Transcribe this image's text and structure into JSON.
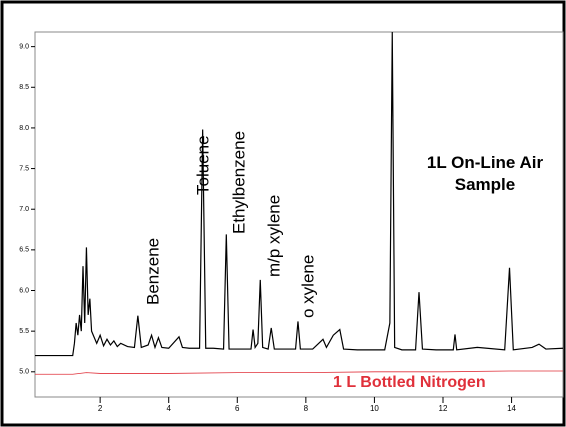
{
  "chart_data": {
    "type": "line",
    "xlim": [
      0.1,
      15.5
    ],
    "ylim": [
      4.69,
      9.18
    ],
    "xticks": [
      2,
      4,
      6,
      8,
      10,
      12,
      14
    ],
    "yticks": [
      {
        "value": 5,
        "label": "5.0"
      },
      5.5,
      {
        "value": 6,
        "label": "6.0"
      },
      6.5,
      {
        "value": 7,
        "label": "7.0"
      },
      7.5,
      {
        "value": 8,
        "label": "8.0"
      },
      8.5,
      {
        "value": 9,
        "label": "9.0"
      }
    ],
    "series": [
      {
        "name": "1L On-Line Air Sample",
        "color": "#000000",
        "x": [
          0.1,
          1.2,
          1.25,
          1.3,
          1.35,
          1.4,
          1.45,
          1.5,
          1.55,
          1.6,
          1.65,
          1.7,
          1.75,
          1.8,
          1.9,
          2.0,
          2.1,
          2.2,
          2.3,
          2.4,
          2.5,
          2.6,
          2.8,
          3.0,
          3.1,
          3.2,
          3.4,
          3.5,
          3.6,
          3.7,
          3.8,
          4.0,
          4.3,
          4.4,
          4.6,
          4.9,
          4.99,
          5.08,
          5.3,
          5.6,
          5.68,
          5.76,
          6.0,
          6.4,
          6.46,
          6.52,
          6.6,
          6.67,
          6.74,
          6.9,
          6.99,
          7.08,
          7.4,
          7.7,
          7.77,
          7.84,
          8.2,
          8.5,
          8.6,
          8.8,
          8.99,
          9.1,
          9.5,
          9.8,
          10.3,
          10.45,
          10.52,
          10.59,
          10.8,
          11.2,
          11.3,
          11.4,
          11.8,
          12.3,
          12.35,
          12.4,
          13.0,
          13.8,
          13.94,
          14.05,
          14.6,
          14.8,
          15.0,
          15.5
        ],
        "values": [
          5.2,
          5.2,
          5.35,
          5.6,
          5.45,
          5.7,
          5.5,
          6.3,
          5.6,
          6.53,
          5.7,
          5.9,
          5.5,
          5.45,
          5.35,
          5.45,
          5.32,
          5.4,
          5.33,
          5.38,
          5.31,
          5.35,
          5.31,
          5.3,
          5.69,
          5.3,
          5.33,
          5.45,
          5.3,
          5.42,
          5.3,
          5.29,
          5.43,
          5.3,
          5.29,
          5.29,
          7.98,
          5.29,
          5.29,
          5.28,
          6.69,
          5.28,
          5.28,
          5.28,
          5.52,
          5.3,
          5.35,
          6.13,
          5.3,
          5.28,
          5.54,
          5.28,
          5.28,
          5.28,
          5.62,
          5.28,
          5.28,
          5.4,
          5.3,
          5.45,
          5.52,
          5.28,
          5.27,
          5.27,
          5.27,
          5.6,
          9.18,
          5.3,
          5.27,
          5.27,
          5.98,
          5.28,
          5.27,
          5.27,
          5.46,
          5.27,
          5.3,
          5.27,
          6.28,
          5.27,
          5.3,
          5.34,
          5.28,
          5.29
        ]
      },
      {
        "name": "1 L Bottled Nitrogen",
        "color": "#e0303a",
        "x": [
          0.1,
          1.2,
          1.6,
          2.0,
          4.0,
          6.0,
          8.0,
          10.0,
          12.0,
          14.0,
          15.5
        ],
        "values": [
          4.97,
          4.97,
          4.99,
          4.98,
          4.98,
          4.99,
          4.99,
          5.0,
          5.0,
          5.01,
          5.01
        ]
      }
    ],
    "annotations": [
      {
        "text": "Benzene"
      },
      {
        "text": "Toluene"
      },
      {
        "text": "Ethylbenzene"
      },
      {
        "text": "m/p xylene"
      },
      {
        "text": "o xylene"
      }
    ]
  }
}
